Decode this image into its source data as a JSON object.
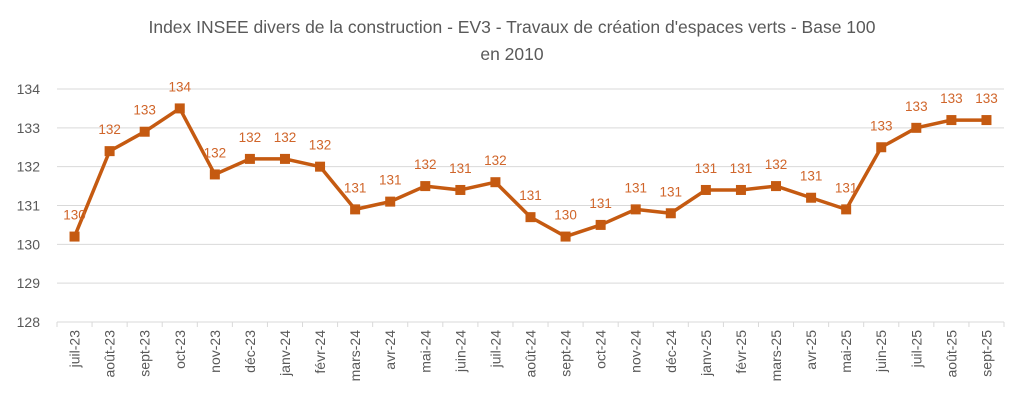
{
  "chart_data": {
    "type": "line",
    "title": "Index INSEE divers de la construction - EV3 - Travaux de création d'espaces verts - Base 100 en 2010",
    "title_lines": [
      "Index INSEE divers de la construction - EV3 - Travaux de création d'espaces verts - Base 100",
      "en 2010"
    ],
    "xlabel": "",
    "ylabel": "",
    "ylim": [
      128,
      134
    ],
    "yticks": [
      "128",
      "129",
      "130",
      "131",
      "132",
      "133",
      "134"
    ],
    "grid": true,
    "legend": "none",
    "color": "#C55A11",
    "label_color": "#D0652A",
    "marker": "square",
    "categories": [
      "juil-23",
      "août-23",
      "sept-23",
      "oct-23",
      "nov-23",
      "déc-23",
      "janv-24",
      "févr-24",
      "mars-24",
      "avr-24",
      "mai-24",
      "juin-24",
      "juil-24",
      "août-24",
      "sept-24",
      "oct-24",
      "nov-24",
      "déc-24",
      "janv-25",
      "févr-25",
      "mars-25",
      "avr-25",
      "mai-25",
      "juin-25",
      "juil-25",
      "août-25",
      "sept-25"
    ],
    "values": [
      130.2,
      132.4,
      132.9,
      133.5,
      131.8,
      132.2,
      132.2,
      132.0,
      130.9,
      131.1,
      131.5,
      131.4,
      131.6,
      130.7,
      130.2,
      130.5,
      130.9,
      130.8,
      131.4,
      131.4,
      131.5,
      131.2,
      130.9,
      132.5,
      133.0,
      133.2,
      133.2
    ],
    "data_labels": [
      "130",
      "132",
      "133",
      "134",
      "132",
      "132",
      "132",
      "132",
      "131",
      "131",
      "132",
      "131",
      "132",
      "131",
      "130",
      "131",
      "131",
      "131",
      "131",
      "131",
      "132",
      "131",
      "131",
      "133",
      "133",
      "133",
      "133"
    ]
  }
}
